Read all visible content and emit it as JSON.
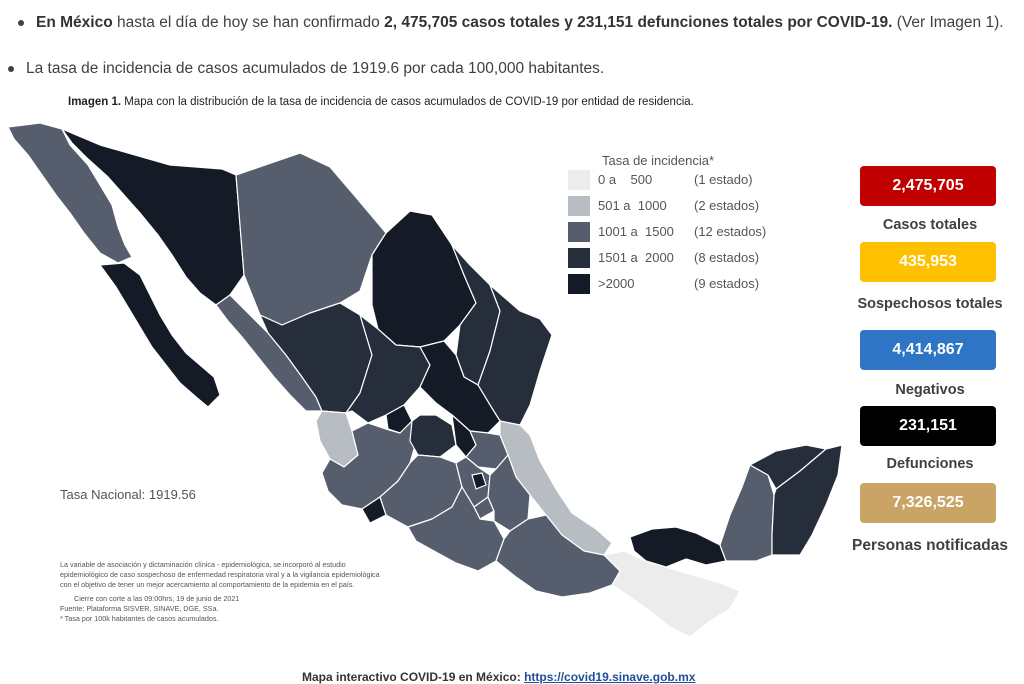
{
  "bullets": {
    "b1_pre": "En México",
    "b1_mid": " hasta el día de hoy se han confirmado ",
    "b1_bold": "2, 475,705 casos totales y 231,151 defunciones totales por COVID-19.",
    "b1_post": " (Ver Imagen 1).",
    "b2": "La tasa de incidencia de casos acumulados de 1919.6 por cada 100,000 habitantes."
  },
  "caption": {
    "label": "Imagen 1.",
    "text": " Mapa con la distribución de la tasa de incidencia de casos acumulados de COVID-19 por entidad de residencia."
  },
  "legend": {
    "title": "Tasa de incidencia*",
    "items": [
      {
        "range": "0 a    500",
        "states": "(1 estado)",
        "color": "#ececec"
      },
      {
        "range": "501 a  1000",
        "states": "(2 estados)",
        "color": "#b8bcc3"
      },
      {
        "range": "1001 a  1500",
        "states": "(12 estados)",
        "color": "#565e6d"
      },
      {
        "range": "1501 a  2000",
        "states": "(8 estados)",
        "color": "#262d3b"
      },
      {
        "range": ">2000",
        "states": "(9 estados)",
        "color": "#141a26"
      }
    ]
  },
  "tasa_nacional": "Tasa Nacional: 1919.56",
  "notes": [
    "La variable de asociación y dictaminación clínica - epidemiológica, se incorporó al estudio",
    "epidemiológico de caso sospechoso de enfermedad respiratoria viral y a la vigilancia epidemiológica",
    "con el objetivo de tener un mejor acercamiento al comportamiento de la epidemia en el país.",
    "Cierre con corte a las 09:00hrs, 19 de junio de 2021",
    "Fuente: Plataforma SISVER, SINAVE, DGE, SSa.",
    "* Tasa por 100k habitantes de casos acumulados."
  ],
  "stats": [
    {
      "value": "2,475,705",
      "label": "Casos totales",
      "color": "#c00000",
      "text_color": "#ffffff"
    },
    {
      "value": "435,953",
      "label": "Sospechosos totales",
      "color": "#ffc000",
      "text_color": "#ffffff"
    },
    {
      "value": "4,414,867",
      "label": "Negativos",
      "color": "#2e75c6",
      "text_color": "#ffffff"
    },
    {
      "value": "231,151",
      "label": "Defunciones",
      "color": "#000000",
      "text_color": "#ffffff"
    },
    {
      "value": "7,326,525",
      "label": "Personas notificadas",
      "color": "#c9a465",
      "text_color": "#ffffff"
    }
  ],
  "footer": {
    "text": "Mapa interactivo COVID-19 en México: ",
    "link": "https://covid19.sinave.gob.mx"
  }
}
